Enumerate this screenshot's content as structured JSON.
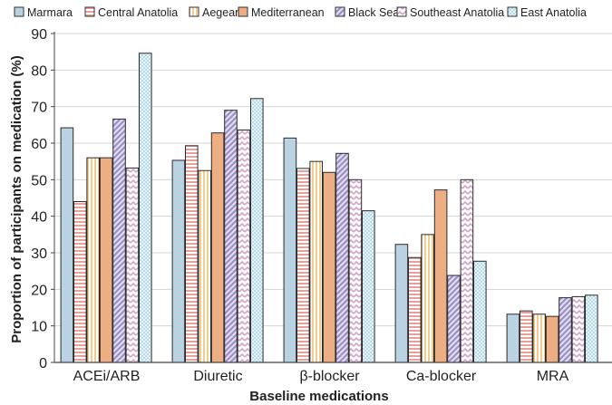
{
  "chart_data": {
    "type": "bar",
    "title": "",
    "xlabel": "Baseline medications",
    "ylabel": "Proportion of participants on medication (%)",
    "ylim": [
      0,
      90
    ],
    "yticks": [
      "0",
      "10",
      "20",
      "30",
      "40",
      "50",
      "60",
      "70",
      "80",
      "90"
    ],
    "grid": "horizontal",
    "legend": "top",
    "categories": [
      "ACEi/ARB",
      "Diuretic",
      "β-blocker",
      "Ca-blocker",
      "MRA"
    ],
    "series": [
      {
        "name": "Marmara",
        "color": "#b9d3e3",
        "pattern": "solid",
        "values": [
          64.2,
          55.3,
          61.4,
          32.3,
          13.2
        ]
      },
      {
        "name": "Central Anatolia",
        "color": "#e8a19a",
        "pattern": "hlines",
        "values": [
          44.0,
          59.3,
          53.1,
          28.7,
          14.1
        ]
      },
      {
        "name": "Aegean",
        "color": "#f0cd8c",
        "pattern": "vlines",
        "values": [
          56.0,
          52.5,
          55.0,
          35.0,
          13.2
        ]
      },
      {
        "name": "Mediterranean",
        "color": "#eeae84",
        "pattern": "solid",
        "values": [
          56.0,
          62.8,
          52.0,
          47.2,
          12.6
        ]
      },
      {
        "name": "Black Sea",
        "color": "#9c8fc4",
        "pattern": "diag",
        "values": [
          66.6,
          69.0,
          57.2,
          23.8,
          17.7
        ]
      },
      {
        "name": "Southeast Anatolia",
        "color": "#d3a3c8",
        "pattern": "zigzag",
        "values": [
          53.2,
          63.6,
          50.0,
          50.0,
          18.0
        ]
      },
      {
        "name": "East Anatolia",
        "color": "#a9d3e3",
        "pattern": "dots",
        "values": [
          84.6,
          72.2,
          41.5,
          27.7,
          18.4
        ]
      }
    ]
  }
}
